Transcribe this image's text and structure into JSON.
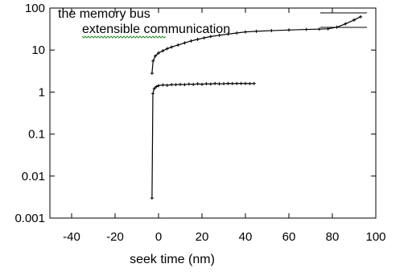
{
  "chart_data": {
    "type": "line",
    "title": "",
    "xlabel": "seek time (nm)",
    "ylabel": "",
    "xlim": [
      -50,
      100
    ],
    "ylim": [
      0.001,
      100
    ],
    "yscale": "log",
    "grid": false,
    "legend_position": "top-left inside",
    "x_ticks": [
      -40,
      -20,
      0,
      20,
      40,
      60,
      80,
      100
    ],
    "x_tick_labels": [
      "-40",
      "-20",
      "0",
      "20",
      "40",
      "60",
      "80",
      "100"
    ],
    "y_ticks": [
      100,
      10,
      1,
      0.1,
      0.01,
      0.001
    ],
    "y_tick_labels": [
      "100",
      "10",
      "1",
      "0.1",
      "0.01",
      "0.001"
    ],
    "series": [
      {
        "name": "the memory bus",
        "color": "#000000",
        "points": [
          [
            -3,
            2.8
          ],
          [
            -2.5,
            5.5
          ],
          [
            -1.5,
            7.2
          ],
          [
            0,
            8.5
          ],
          [
            2,
            9.6
          ],
          [
            4,
            10.8
          ],
          [
            6,
            11.8
          ],
          [
            9,
            13.2
          ],
          [
            12,
            14.8
          ],
          [
            15,
            16.5
          ],
          [
            18,
            18
          ],
          [
            21,
            19.5
          ],
          [
            24,
            21
          ],
          [
            28,
            22.5
          ],
          [
            32,
            24
          ],
          [
            36,
            25.5
          ],
          [
            40,
            27
          ],
          [
            45,
            28
          ],
          [
            52,
            29
          ],
          [
            60,
            30
          ],
          [
            68,
            31
          ],
          [
            74,
            31.5
          ],
          [
            78,
            32
          ],
          [
            82,
            35
          ],
          [
            86,
            42
          ],
          [
            90,
            52
          ],
          [
            93,
            62
          ]
        ]
      },
      {
        "name": "extensible communication",
        "color": "#000000",
        "points": [
          [
            -3,
            0.003
          ],
          [
            -2.6,
            0.92
          ],
          [
            -2,
            1.2
          ],
          [
            -1,
            1.35
          ],
          [
            0,
            1.42
          ],
          [
            2,
            1.48
          ],
          [
            4,
            1.45
          ],
          [
            6,
            1.5
          ],
          [
            8,
            1.5
          ],
          [
            10,
            1.52
          ],
          [
            12,
            1.5
          ],
          [
            14,
            1.55
          ],
          [
            16,
            1.52
          ],
          [
            18,
            1.57
          ],
          [
            20,
            1.53
          ],
          [
            22,
            1.58
          ],
          [
            24,
            1.55
          ],
          [
            26,
            1.6
          ],
          [
            28,
            1.57
          ],
          [
            30,
            1.58
          ],
          [
            32,
            1.6
          ],
          [
            34,
            1.59
          ],
          [
            36,
            1.6
          ],
          [
            38,
            1.6
          ],
          [
            40,
            1.6
          ],
          [
            42,
            1.59
          ],
          [
            44,
            1.6
          ]
        ]
      }
    ],
    "legend": [
      {
        "label": "the memory bus"
      },
      {
        "label": "extensible communication"
      }
    ]
  }
}
